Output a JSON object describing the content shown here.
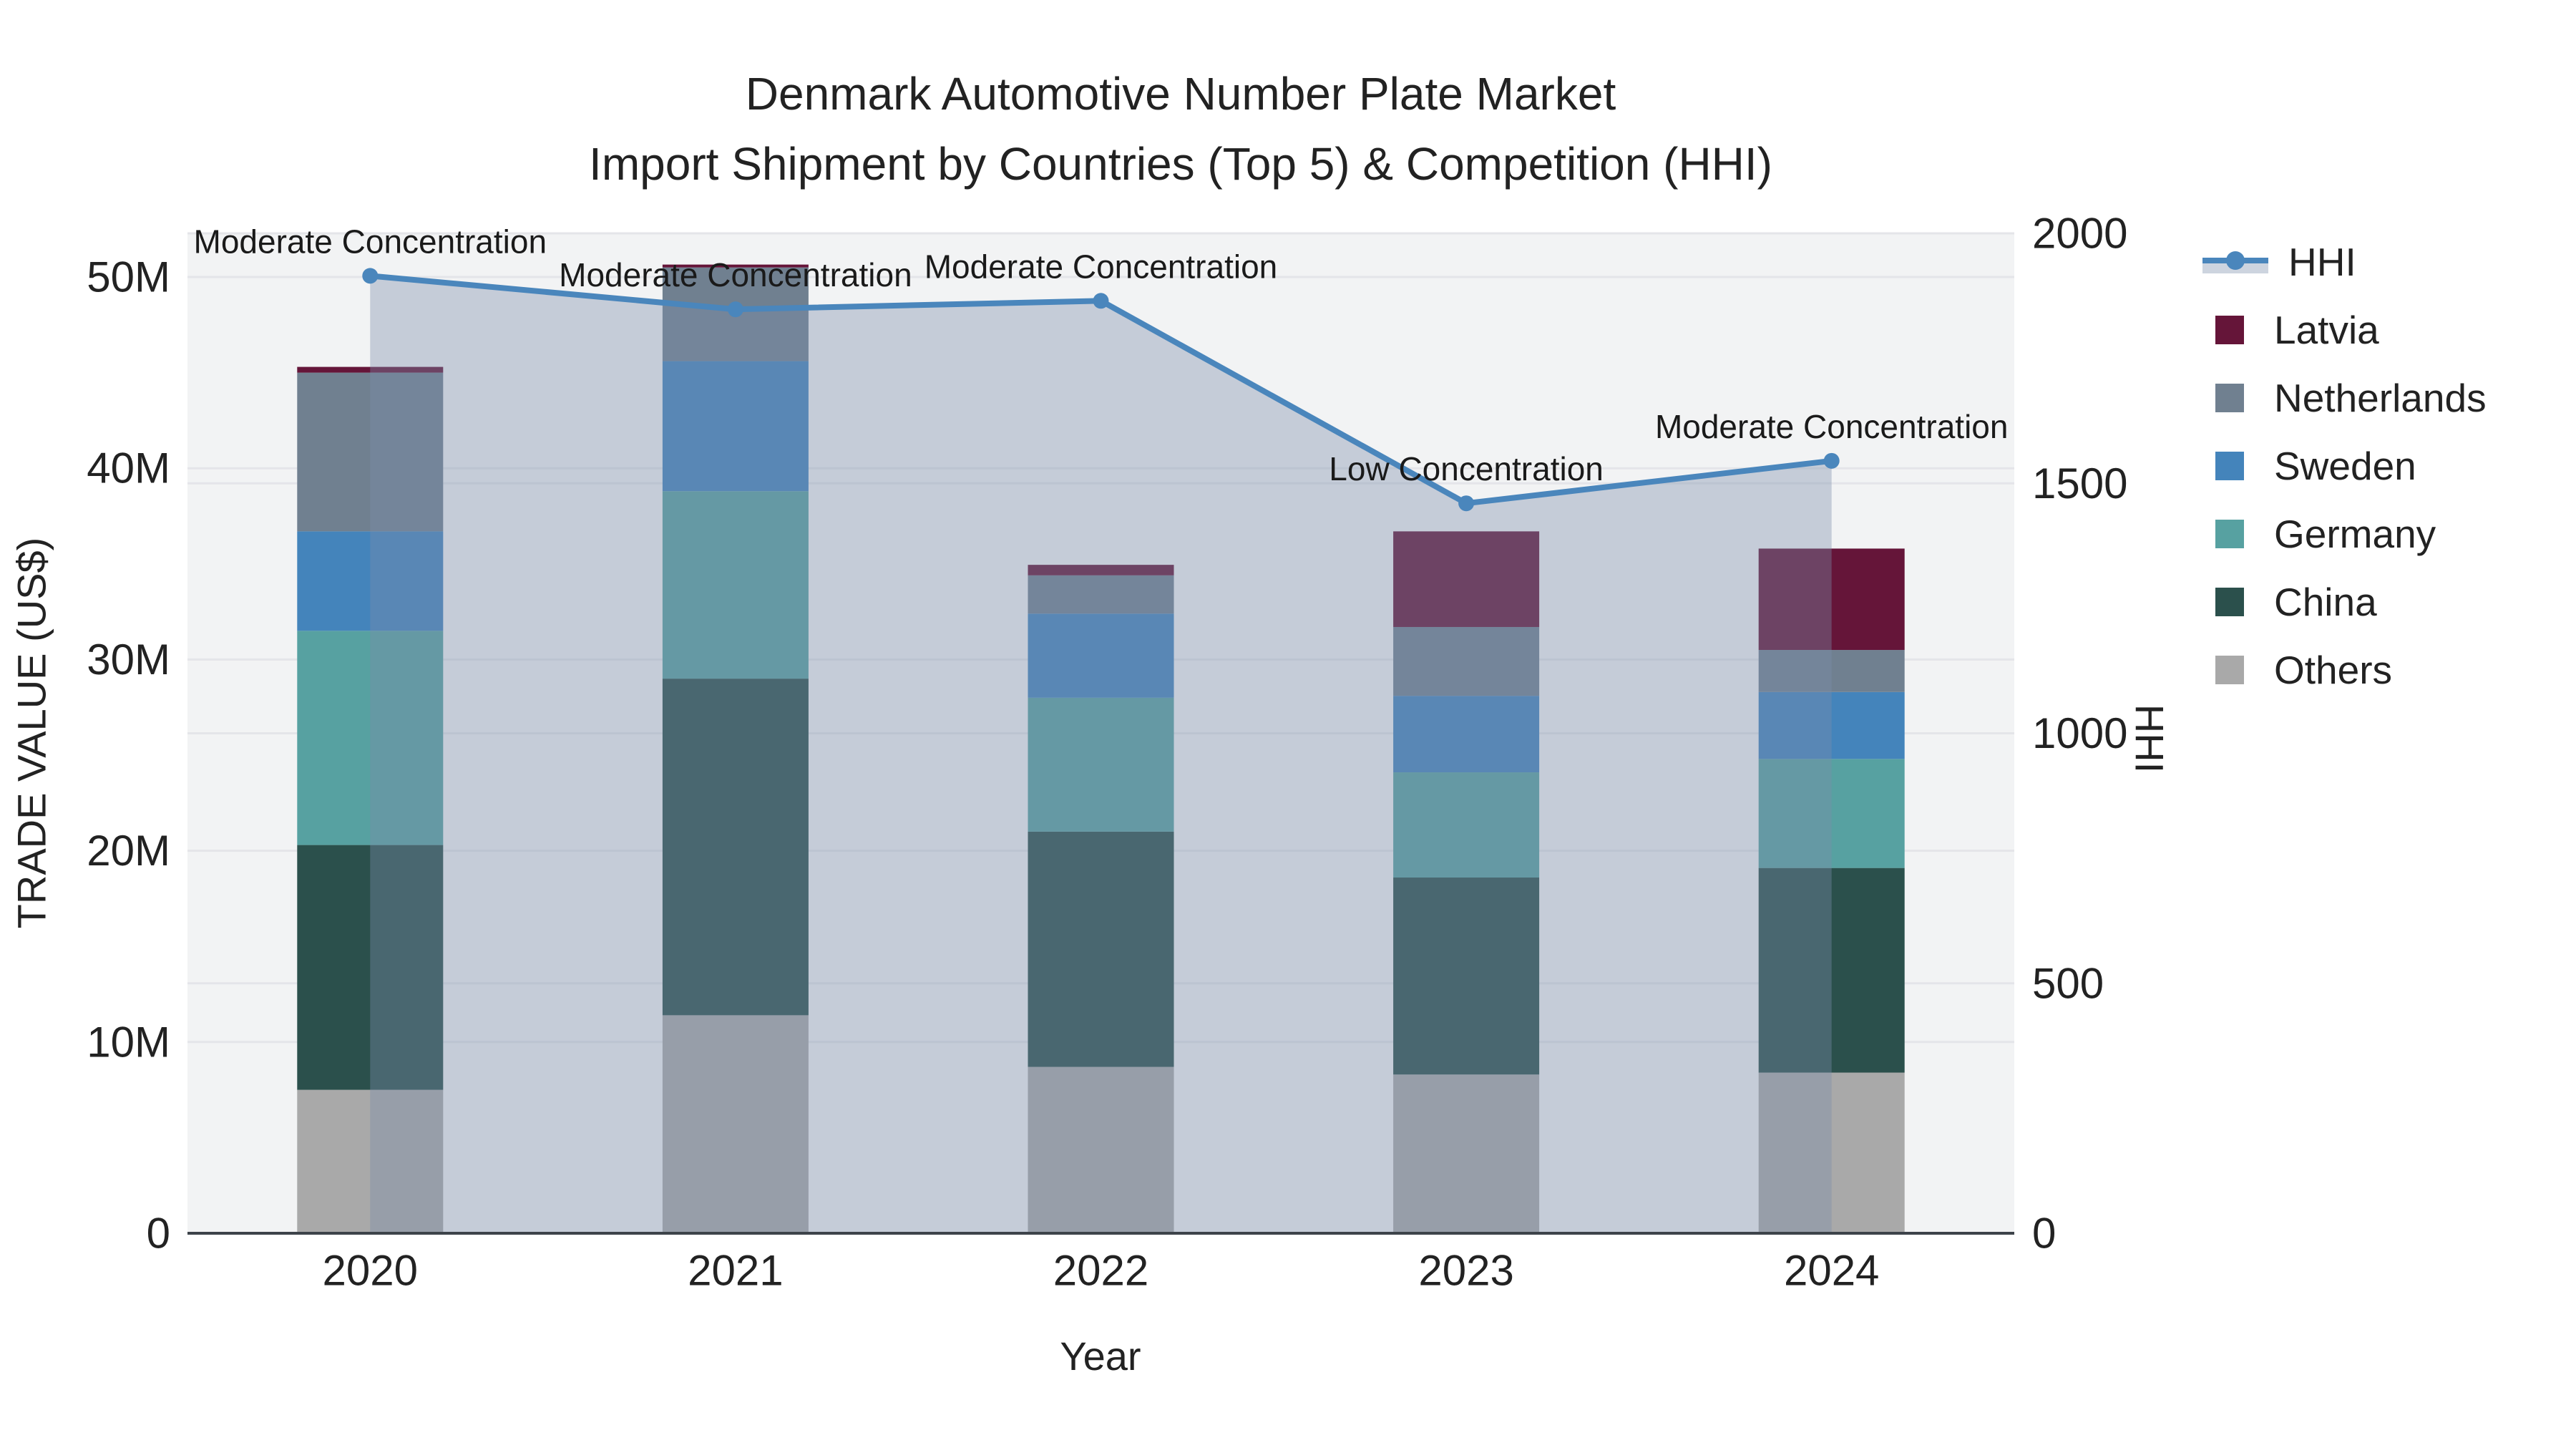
{
  "title": {
    "line1": "Denmark Automotive Number Plate Market",
    "line2": "Import Shipment by Countries (Top 5) & Competition (HHI)"
  },
  "chart_data": {
    "type": "combo: stacked-bar + line (secondary axis) with area fill",
    "categories": [
      "2020",
      "2021",
      "2022",
      "2023",
      "2024"
    ],
    "x_label": "Year",
    "y_left": {
      "label": "TRADE VALUE (US$)",
      "units": "millions of US$",
      "ticks": [
        0,
        10,
        20,
        30,
        40,
        50
      ],
      "tick_labels": [
        "0",
        "10M",
        "20M",
        "30M",
        "40M",
        "50M"
      ],
      "range": [
        0,
        52.3
      ]
    },
    "y_right": {
      "label": "HHI",
      "ticks": [
        0,
        500,
        1000,
        1500,
        2000
      ],
      "tick_labels": [
        "0",
        "500",
        "1000",
        "1500",
        "2000"
      ],
      "range": [
        0,
        2000
      ]
    },
    "bar_series_bottom_to_top": [
      {
        "name": "Others",
        "color": "#a9a9a9",
        "values": [
          7.5,
          11.4,
          8.7,
          8.3,
          8.4
        ]
      },
      {
        "name": "China",
        "color": "#2b504c",
        "values": [
          12.8,
          17.6,
          12.3,
          10.3,
          10.7
        ]
      },
      {
        "name": "Germany",
        "color": "#57a1a1",
        "values": [
          11.2,
          9.8,
          7.0,
          5.5,
          5.7
        ]
      },
      {
        "name": "Sweden",
        "color": "#4484bb",
        "values": [
          5.2,
          6.8,
          4.4,
          4.0,
          3.5
        ]
      },
      {
        "name": "Netherlands",
        "color": "#708090",
        "values": [
          8.3,
          4.9,
          2.0,
          3.6,
          2.2
        ]
      },
      {
        "name": "Latvia",
        "color": "#651539",
        "values": [
          0.3,
          0.15,
          0.55,
          5.0,
          5.3
        ]
      }
    ],
    "bar_totals": [
      45.3,
      50.65,
      34.95,
      36.7,
      35.8
    ],
    "line_series": {
      "name": "HHI",
      "color": "#4a86bc",
      "fill_color": "rgba(123,143,170,0.38)",
      "values": [
        1915,
        1848,
        1865,
        1460,
        1545
      ]
    },
    "annotations": [
      {
        "category": "2020",
        "text": "Moderate Concentration"
      },
      {
        "category": "2021",
        "text": "Moderate Concentration"
      },
      {
        "category": "2022",
        "text": "Moderate Concentration"
      },
      {
        "category": "2023",
        "text": "Low Concentration"
      },
      {
        "category": "2024",
        "text": "Moderate Concentration"
      }
    ],
    "legend_order": [
      "HHI",
      "Latvia",
      "Netherlands",
      "Sweden",
      "Germany",
      "China",
      "Others"
    ],
    "layout_hints": {
      "legend_position": "right",
      "grid": true,
      "plot_background": "#f2f3f4",
      "gridline_color": "#e4e5e9",
      "axis_line_color": "#3d434a",
      "text_color": "#222222"
    }
  }
}
